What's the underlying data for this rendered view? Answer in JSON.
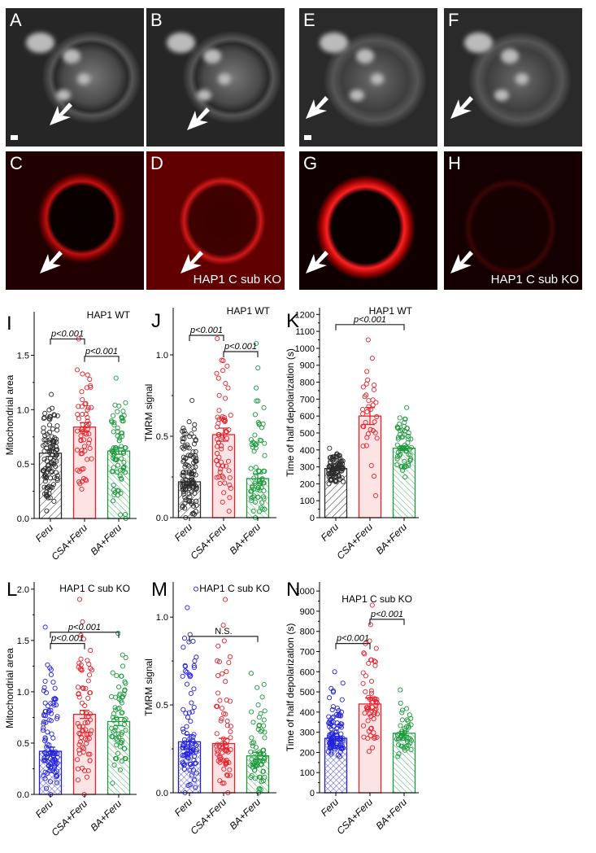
{
  "images": [
    {
      "letter": "A",
      "style": "gray",
      "scale_bar": true
    },
    {
      "letter": "B",
      "style": "gray"
    },
    {
      "letter": "C",
      "style": "red1"
    },
    {
      "letter": "D",
      "style": "red2",
      "caption": "HAP1 C sub KO"
    },
    {
      "letter": "E",
      "style": "gray2",
      "scale_bar": true
    },
    {
      "letter": "F",
      "style": "gray2"
    },
    {
      "letter": "G",
      "style": "red3"
    },
    {
      "letter": "H",
      "style": "red4",
      "caption": "HAP1 C sub KO"
    }
  ],
  "colors": {
    "black": "#2b2b2b",
    "red": "#e8202a",
    "red_fill": "#fde4e4",
    "green": "#1a9a3a",
    "blue": "#2222dd"
  },
  "chart_data": [
    {
      "panel": "I",
      "type": "bar",
      "condition": "HAP1 WT",
      "ylabel": "Mitochondrial area",
      "ylim": [
        0,
        1.9
      ],
      "yticks": [
        0,
        0.5,
        1.0,
        1.5
      ],
      "ytick_labels": [
        "0.0",
        "0.5",
        "1.0",
        "1.5"
      ],
      "categories": [
        "Feru",
        "CSA+Feru",
        "BA+Feru"
      ],
      "values": [
        0.6,
        0.84,
        0.62
      ],
      "sem": [
        0.03,
        0.04,
        0.03
      ],
      "point_ranges": [
        [
          0.07,
          1.14
        ],
        [
          0.27,
          1.65
        ],
        [
          0.0,
          1.29
        ]
      ],
      "n_points": [
        110,
        60,
        75
      ],
      "group_colors": [
        "black",
        "red",
        "green"
      ],
      "patterns": [
        "hatch",
        "solid",
        "hatch2"
      ],
      "comparisons": [
        {
          "from": 0,
          "to": 1,
          "y": 1.65,
          "label": "p<0.001"
        },
        {
          "from": 1,
          "to": 2,
          "y": 1.49,
          "label": "p<0.001"
        }
      ]
    },
    {
      "panel": "J",
      "type": "bar",
      "condition": "HAP1 WT",
      "ylabel": "TMRM signal",
      "ylim": [
        0,
        1.29
      ],
      "yticks": [
        0,
        0.5,
        1.0
      ],
      "ytick_labels": [
        "0.0",
        "0.5",
        "1.0"
      ],
      "categories": [
        "Feru",
        "CSA+Feru",
        "BA+Feru"
      ],
      "values": [
        0.22,
        0.51,
        0.24
      ],
      "sem": [
        0.02,
        0.04,
        0.03
      ],
      "point_ranges": [
        [
          0.0,
          0.72
        ],
        [
          0.04,
          1.1
        ],
        [
          0.0,
          1.07
        ]
      ],
      "n_points": [
        120,
        65,
        70
      ],
      "group_colors": [
        "black",
        "red",
        "green"
      ],
      "patterns": [
        "hatch",
        "solid",
        "hatch2"
      ],
      "comparisons": [
        {
          "from": 0,
          "to": 1,
          "y": 1.12,
          "label": "p<0.001"
        },
        {
          "from": 1,
          "to": 2,
          "y": 1.02,
          "label": "p<0.001"
        }
      ]
    },
    {
      "panel": "K",
      "type": "bar",
      "condition": "HAP1 WT",
      "ylabel": "Time of half depolarization (s)",
      "ylim": [
        0,
        1240
      ],
      "yticks": [
        0,
        100,
        200,
        300,
        400,
        500,
        600,
        700,
        800,
        900,
        1000,
        1100,
        1200
      ],
      "ytick_labels": [
        "0",
        "100",
        "200",
        "300",
        "400",
        "500",
        "600",
        "700",
        "800",
        "900",
        "1000",
        "1100",
        "1200"
      ],
      "categories": [
        "Feru",
        "CSA+Feru",
        "BA+Feru"
      ],
      "values": [
        290,
        600,
        410
      ],
      "sem": [
        10,
        50,
        12
      ],
      "point_ranges": [
        [
          200,
          410
        ],
        [
          130,
          1050
        ],
        [
          240,
          650
        ]
      ],
      "n_points": [
        90,
        35,
        60
      ],
      "group_colors": [
        "black",
        "red",
        "green"
      ],
      "patterns": [
        "hatch",
        "solid",
        "hatch2"
      ],
      "comparisons": [
        {
          "from": 0,
          "to": 2,
          "y": 1140,
          "label": "p<0.001"
        }
      ]
    },
    {
      "panel": "L",
      "type": "bar",
      "condition": "HAP1 C sub KO",
      "ylabel": "Mitochondrial area",
      "ylim": [
        0,
        2.07
      ],
      "yticks": [
        0,
        0.5,
        1.0,
        1.5,
        2.0
      ],
      "ytick_labels": [
        "0.0",
        "0.5",
        "1.0",
        "1.5",
        "2.0"
      ],
      "categories": [
        "Feru",
        "CSA+Feru",
        "BA+Feru"
      ],
      "values": [
        0.42,
        0.78,
        0.71
      ],
      "sem": [
        0.04,
        0.04,
        0.04
      ],
      "point_ranges": [
        [
          0.0,
          1.63
        ],
        [
          0.0,
          1.9
        ],
        [
          0.11,
          1.57
        ]
      ],
      "n_points": [
        100,
        75,
        65
      ],
      "group_colors": [
        "blue",
        "red",
        "green"
      ],
      "patterns": [
        "cross",
        "solid",
        "hatch2"
      ],
      "comparisons": [
        {
          "from": 0,
          "to": 2,
          "y": 1.58,
          "label": "p<0.001"
        },
        {
          "from": 0,
          "to": 1,
          "y": 1.47,
          "label": "p<0.001"
        }
      ]
    },
    {
      "panel": "M",
      "type": "bar",
      "condition": "HAP1 C sub KO",
      "ylabel": "TMRM signal",
      "ylim": [
        0,
        1.2
      ],
      "yticks": [
        0,
        0.5,
        1.0
      ],
      "ytick_labels": [
        "0.0",
        "0.5",
        "1.0"
      ],
      "categories": [
        "Feru",
        "CSA+Feru",
        "BA+Feru"
      ],
      "values": [
        0.29,
        0.28,
        0.21
      ],
      "sem": [
        0.04,
        0.03,
        0.02
      ],
      "point_ranges": [
        [
          0.0,
          1.16
        ],
        [
          0.0,
          1.1
        ],
        [
          0.0,
          0.68
        ]
      ],
      "n_points": [
        90,
        70,
        70
      ],
      "group_colors": [
        "blue",
        "red",
        "green"
      ],
      "patterns": [
        "cross",
        "solid",
        "hatch2"
      ],
      "comparisons": [
        {
          "from": 0,
          "to": 2,
          "y": 0.89,
          "label": "N.S."
        }
      ]
    },
    {
      "panel": "N",
      "type": "bar",
      "condition": "HAP1 C sub KO",
      "ylabel": "Time of half depolarization (s)",
      "ylim": [
        0,
        1045
      ],
      "yticks": [
        0,
        100,
        200,
        300,
        400,
        500,
        600,
        700,
        800,
        900,
        1000
      ],
      "ytick_labels": [
        "0",
        "100",
        "200",
        "300",
        "400",
        "500",
        "600",
        "700",
        "800",
        "900",
        "1000"
      ],
      "categories": [
        "Feru",
        "CSA+Feru",
        "BA+Feru"
      ],
      "values": [
        270,
        440,
        295
      ],
      "sem": [
        10,
        30,
        10
      ],
      "point_ranges": [
        [
          180,
          600
        ],
        [
          205,
          930
        ],
        [
          180,
          510
        ]
      ],
      "n_points": [
        100,
        60,
        50
      ],
      "group_colors": [
        "blue",
        "red",
        "green"
      ],
      "patterns": [
        "cross",
        "solid",
        "hatch2"
      ],
      "comparisons": [
        {
          "from": 0,
          "to": 1,
          "y": 740,
          "label": "p<0.001"
        },
        {
          "from": 1,
          "to": 2,
          "y": 860,
          "label": "p<0.001"
        }
      ]
    }
  ]
}
